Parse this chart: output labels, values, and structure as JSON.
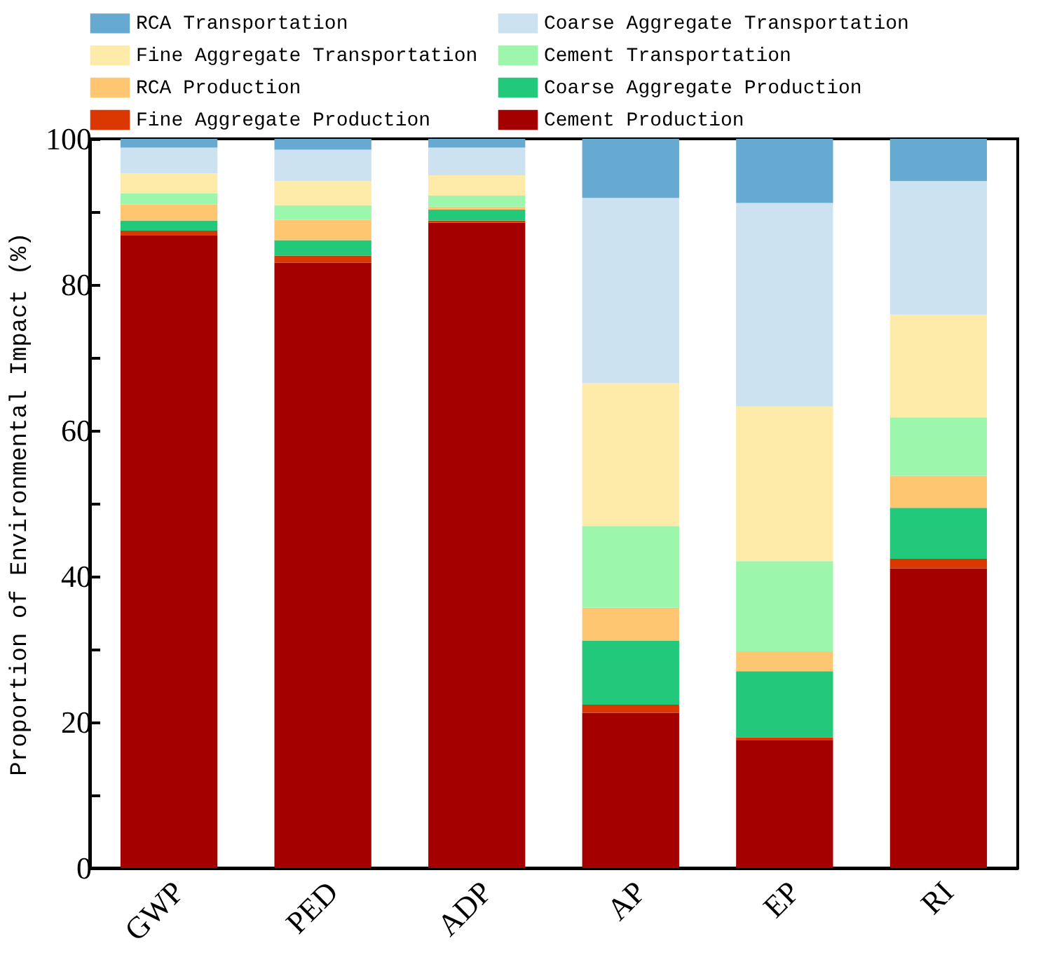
{
  "chart_data": {
    "type": "bar",
    "stacked": true,
    "ylabel": "Proportion of Environmental Impact (%)",
    "categories": [
      "GWP",
      "PED",
      "ADP",
      "AP",
      "EP",
      "RI"
    ],
    "ylim": [
      0,
      100
    ],
    "yticks": [
      0,
      {
        "value": 10,
        "label": null
      },
      20,
      {
        "value": 30,
        "label": null
      },
      40,
      {
        "value": 50,
        "label": null
      },
      60,
      {
        "value": 70,
        "label": null
      },
      80,
      {
        "value": 90,
        "label": null
      },
      100
    ],
    "grid": false,
    "legend": "top",
    "series": [
      {
        "name": "Cement Production",
        "color": "#a50000",
        "values": [
          86.8,
          83.0,
          88.5,
          21.3,
          17.5,
          41.1
        ]
      },
      {
        "name": "Fine Aggregate Production",
        "color": "#db3700",
        "values": [
          0.6,
          1.0,
          0.3,
          1.1,
          0.4,
          1.3
        ]
      },
      {
        "name": "Coarse Aggregate Production",
        "color": "#22c97a",
        "values": [
          1.4,
          2.1,
          1.5,
          8.8,
          9.1,
          7.0
        ]
      },
      {
        "name": "RCA Production",
        "color": "#fec671",
        "values": [
          2.2,
          2.8,
          0.4,
          4.5,
          2.7,
          4.4
        ]
      },
      {
        "name": "Cement Transportation",
        "color": "#9cf6ac",
        "values": [
          1.5,
          2.0,
          1.5,
          11.2,
          12.4,
          8.0
        ]
      },
      {
        "name": "Fine Aggregate Transportation",
        "color": "#feeaa9",
        "values": [
          2.8,
          3.3,
          2.8,
          19.6,
          21.2,
          14.1
        ]
      },
      {
        "name": "Coarse Aggregate Transportation",
        "color": "#cce2f0",
        "values": [
          3.5,
          4.3,
          3.8,
          25.4,
          27.9,
          18.3
        ]
      },
      {
        "name": "RCA Transportation",
        "color": "#67aad1",
        "values": [
          1.2,
          1.5,
          1.2,
          8.1,
          8.8,
          5.8
        ]
      }
    ]
  }
}
